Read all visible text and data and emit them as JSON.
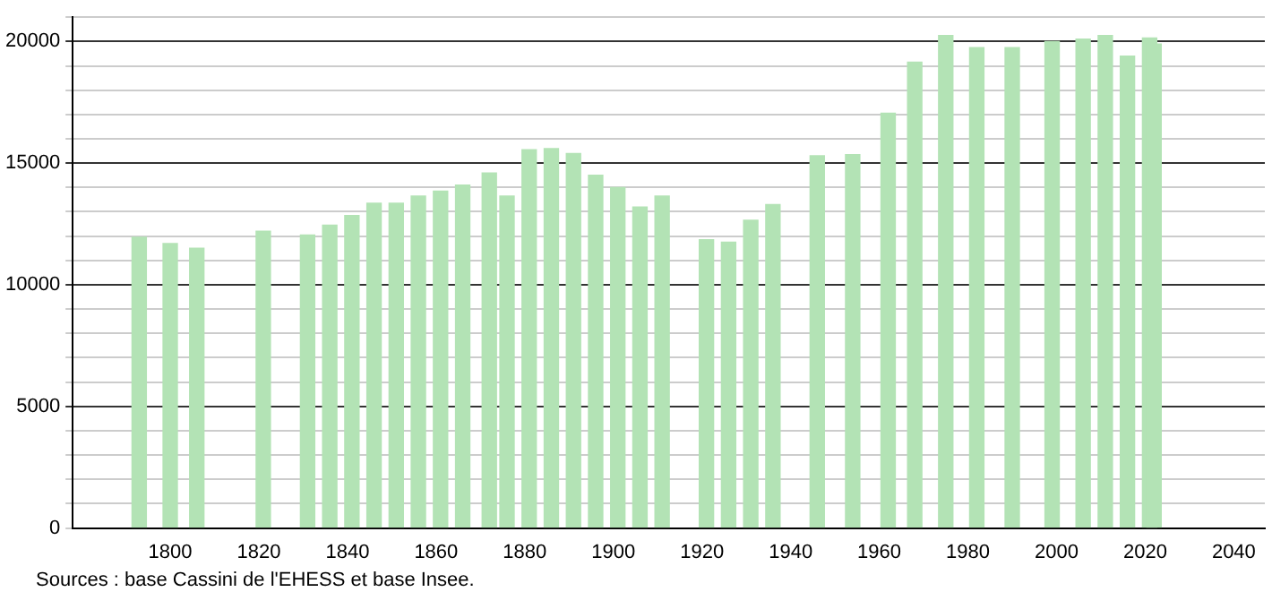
{
  "chart_data": {
    "type": "bar",
    "x": [
      1793,
      1800,
      1806,
      1821,
      1831,
      1836,
      1841,
      1846,
      1851,
      1856,
      1861,
      1866,
      1872,
      1876,
      1881,
      1886,
      1891,
      1896,
      1901,
      1906,
      1911,
      1921,
      1926,
      1931,
      1936,
      1946,
      1954,
      1962,
      1968,
      1975,
      1982,
      1990,
      1999,
      2006,
      2011,
      2016,
      2021,
      2022
    ],
    "values": [
      11950,
      11700,
      11500,
      12200,
      12050,
      12450,
      12850,
      13350,
      13350,
      13650,
      13850,
      14100,
      14600,
      13650,
      15550,
      15600,
      15400,
      14500,
      14000,
      13200,
      13650,
      11850,
      11750,
      12650,
      13300,
      15300,
      15350,
      17050,
      19150,
      20250,
      19750,
      19750,
      20000,
      20100,
      20250,
      19400,
      20150,
      19900
    ],
    "color": "#b3e3b5",
    "xlim": [
      1778,
      2047
    ],
    "xticks": [
      1800,
      1820,
      1840,
      1860,
      1880,
      1900,
      1920,
      1940,
      1960,
      1980,
      2000,
      2020,
      2040
    ],
    "ylim": [
      0,
      21000
    ],
    "yticks": [
      0,
      {
        "value": 1000,
        "label": null
      },
      {
        "value": 2000,
        "label": null
      },
      {
        "value": 3000,
        "label": null
      },
      {
        "value": 4000,
        "label": null
      },
      5000,
      {
        "value": 6000,
        "label": null
      },
      {
        "value": 7000,
        "label": null
      },
      {
        "value": 8000,
        "label": null
      },
      {
        "value": 9000,
        "label": null
      },
      10000,
      {
        "value": 11000,
        "label": null
      },
      {
        "value": 12000,
        "label": null
      },
      {
        "value": 13000,
        "label": null
      },
      {
        "value": 14000,
        "label": null
      },
      15000,
      {
        "value": 16000,
        "label": null
      },
      {
        "value": 17000,
        "label": null
      },
      {
        "value": 18000,
        "label": null
      },
      {
        "value": 19000,
        "label": null
      },
      20000,
      {
        "value": 21000,
        "label": null
      }
    ],
    "grid": "y",
    "annotations": [
      "Sources : base Cassini de l'EHESS et base Insee."
    ]
  }
}
